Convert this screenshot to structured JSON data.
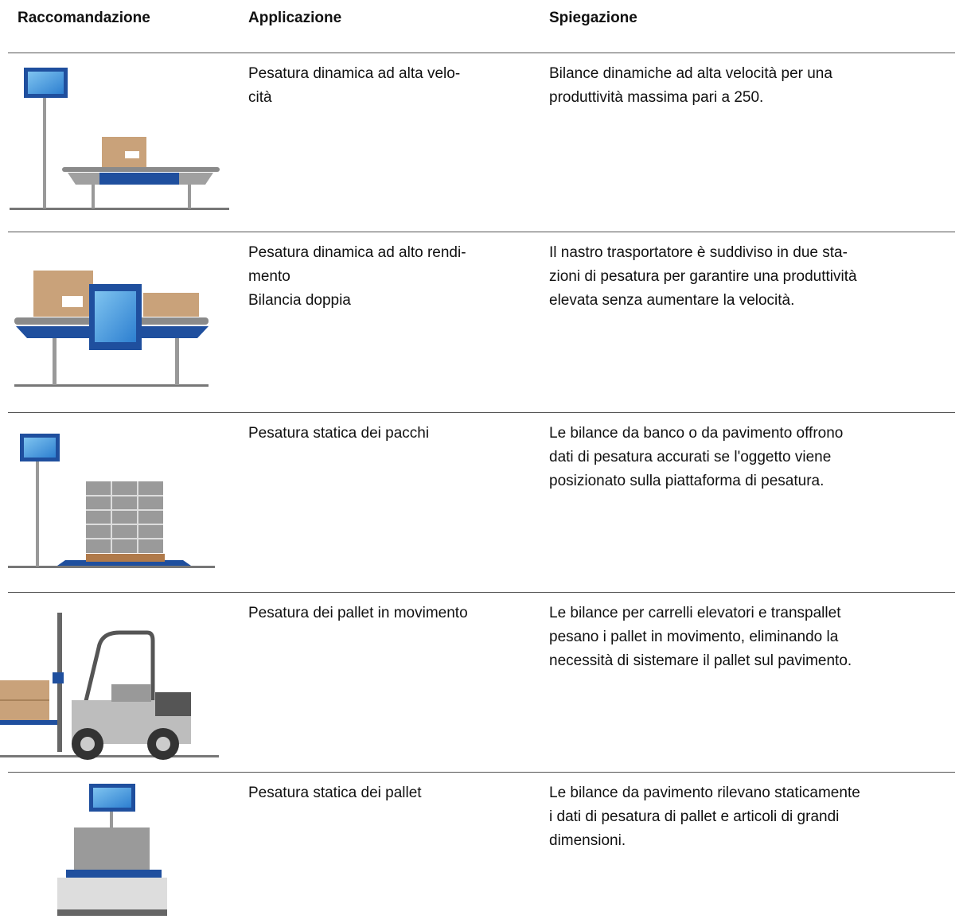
{
  "header": {
    "columns": [
      "Raccomandazione",
      "Applicazione",
      "Spiegazione"
    ]
  },
  "table": {
    "rows": [
      {
        "application": [
          "Pesatura dinamica ad alta velo-",
          "cità"
        ],
        "explanation": [
          "Bilance dinamiche ad alta velocità per una",
          "produttività massima pari a 250."
        ]
      },
      {
        "application": [
          "Pesatura dinamica ad alto rendi-",
          "mento",
          "Bilancia doppia"
        ],
        "explanation": [
          "Il nastro trasportatore è suddiviso in due sta-",
          "zioni di pesatura per garantire una produttività",
          "elevata senza aumentare la velocità."
        ]
      },
      {
        "application": [
          "Pesatura statica dei pacchi"
        ],
        "explanation": [
          "Le bilance da banco o da pavimento offrono",
          "dati di pesatura accurati se l'oggetto viene",
          "posizionato sulla piattaforma di pesatura."
        ]
      },
      {
        "application": [
          "Pesatura dei pallet in movimento"
        ],
        "explanation": [
          "Le bilance per carrelli elevatori e transpallet",
          "pesano i pallet in movimento, eliminando la",
          "necessità di sistemare il pallet sul pavimento."
        ]
      },
      {
        "application": [
          "Pesatura statica dei pallet"
        ],
        "explanation": [
          "Le bilance da pavimento rilevano staticamente",
          "i dati di pesatura di pallet e articoli di grandi",
          "dimensioni."
        ]
      }
    ]
  }
}
